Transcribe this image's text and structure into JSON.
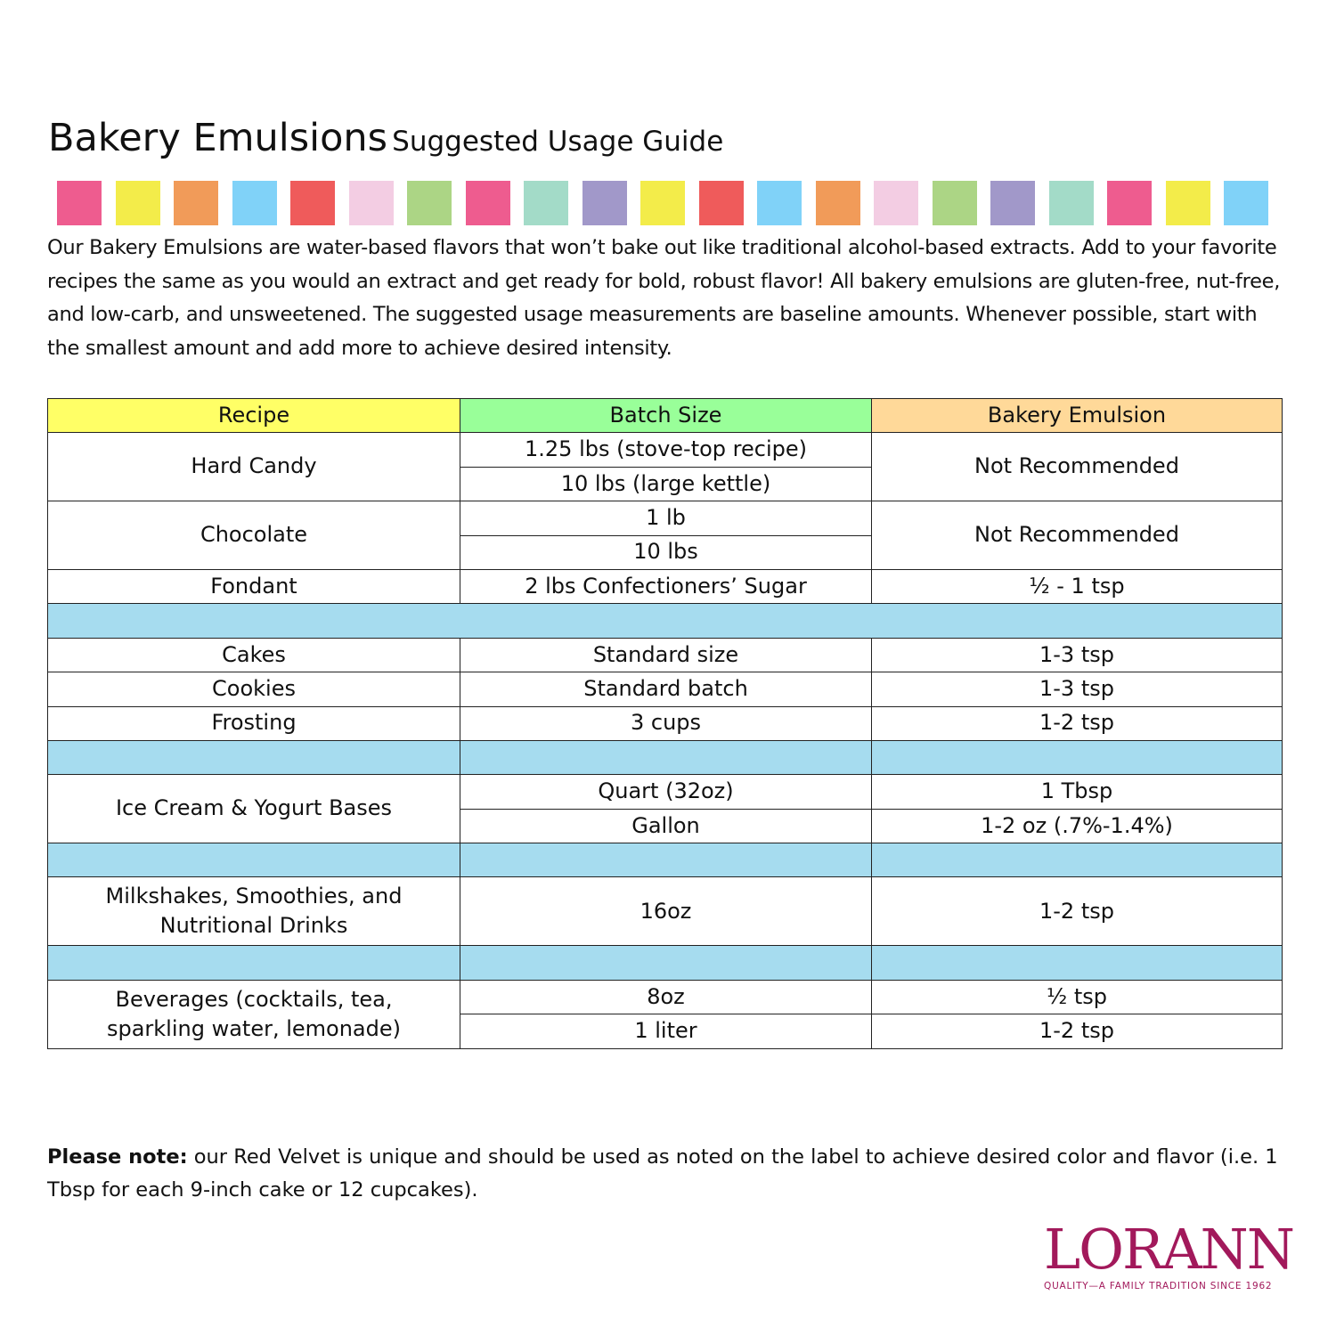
{
  "title": {
    "main": "Bakery Emulsions",
    "sub": "Suggested Usage Guide"
  },
  "swatch_colors": [
    "#ee5c8f",
    "#f3ec4a",
    "#f19b59",
    "#80d2f8",
    "#ef5b5b",
    "#f3cde3",
    "#acd585",
    "#ee5c8f",
    "#a3dbc8",
    "#a198c9",
    "#f3ec4a",
    "#ef5b5b",
    "#80d2f8",
    "#f19b59",
    "#f3cde3",
    "#acd585",
    "#a198c9",
    "#a3dbc8",
    "#ee5c8f",
    "#f3ec4a",
    "#80d2f8"
  ],
  "intro": "Our Bakery Emulsions are water-based flavors that won’t bake out like traditional alcohol-based extracts. Add to your favorite recipes the same as you would an extract and get ready for bold, robust flavor! All bakery emulsions are gluten-free, nut-free, and low-carb, and unsweetened. The suggested usage measurements are baseline amounts. Whenever possible, start with the smallest amount and add more to achieve desired intensity.",
  "colors": {
    "header_recipe": "#ffff66",
    "header_batch": "#99ff99",
    "header_emulsion": "#ffd999",
    "separator": "#a6dcef",
    "brand": "#a2195b"
  },
  "table": {
    "headers": [
      "Recipe",
      "Batch Size",
      "Bakery Emulsion"
    ],
    "hard_candy": {
      "recipe": "Hard Candy",
      "batch": [
        "1.25 lbs (stove-top recipe)",
        "10 lbs (large kettle)"
      ],
      "emulsion": "Not Recommended"
    },
    "chocolate": {
      "recipe": "Chocolate",
      "batch": [
        "1 lb",
        "10 lbs"
      ],
      "emulsion": "Not Recommended"
    },
    "fondant": {
      "recipe": "Fondant",
      "batch": "2 lbs Confectioners’ Sugar",
      "emulsion": "½ - 1 tsp"
    },
    "cakes": {
      "recipe": "Cakes",
      "batch": "Standard size",
      "emulsion": "1-3 tsp"
    },
    "cookies": {
      "recipe": "Cookies",
      "batch": "Standard batch",
      "emulsion": "1-3 tsp"
    },
    "frosting": {
      "recipe": "Frosting",
      "batch": "3 cups",
      "emulsion": "1-2 tsp"
    },
    "ice_cream": {
      "recipe": "Ice Cream & Yogurt Bases",
      "batch": [
        "Quart (32oz)",
        "Gallon"
      ],
      "emulsion": [
        "1 Tbsp",
        "1-2 oz (.7%-1.4%)"
      ]
    },
    "milkshakes": {
      "recipe": "Milkshakes, Smoothies, and Nutritional Drinks",
      "batch": "16oz",
      "emulsion": "1-2 tsp"
    },
    "beverages": {
      "recipe": "Beverages (cocktails, tea, sparkling water, lemonade)",
      "batch": [
        "8oz",
        "1 liter"
      ],
      "emulsion": [
        "½ tsp",
        "1-2 tsp"
      ]
    }
  },
  "note": {
    "label": "Please note:",
    "text": " our Red Velvet is unique and should be used as noted on the label to achieve desired color and flavor (i.e. 1 Tbsp for each 9-inch cake or 12 cupcakes)."
  },
  "logo": {
    "name": "LORANN",
    "tagline": "QUALITY—A FAMILY TRADITION SINCE 1962"
  }
}
